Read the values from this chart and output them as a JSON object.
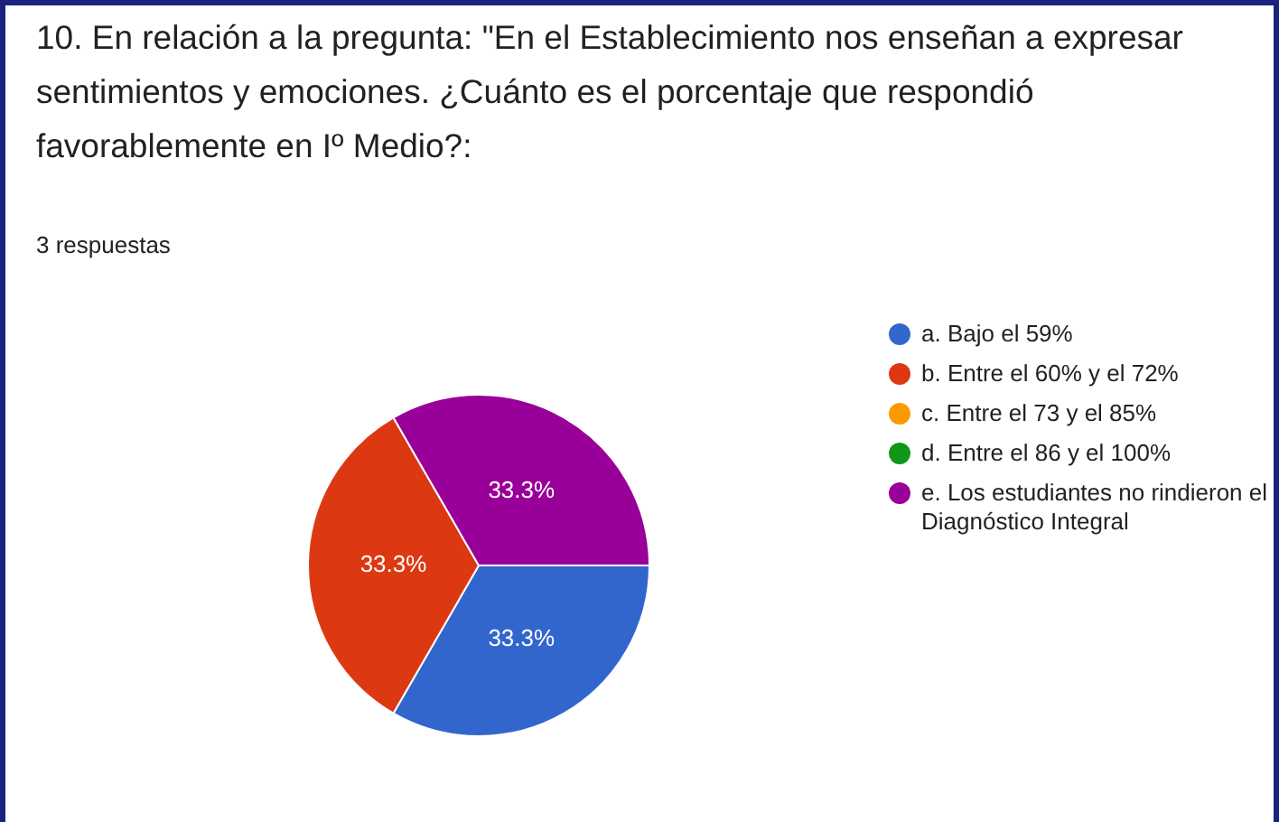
{
  "chart_data": {
    "type": "pie",
    "title": "10. En relación a la pregunta: \"En el Establecimiento nos enseñan a expresar sentimientos y emociones. ¿Cuánto es el porcentaje que respondió favorablemente en Iº Medio?:",
    "subtitle": "3 respuestas",
    "categories": [
      "a. Bajo el 59%",
      "b. Entre el 60% y el 72%",
      "c. Entre el 73 y el 85%",
      "d. Entre el 86 y el 100%",
      "e. Los estudiantes no rindieron el Diagnóstico Integral"
    ],
    "values": [
      33.3,
      33.3,
      0,
      0,
      33.3
    ],
    "colors": [
      "#3366cc",
      "#dc3912",
      "#ff9900",
      "#109618",
      "#990099"
    ],
    "value_labels": [
      "33.3%",
      "33.3%",
      null,
      null,
      "33.3%"
    ],
    "legend": "right"
  }
}
